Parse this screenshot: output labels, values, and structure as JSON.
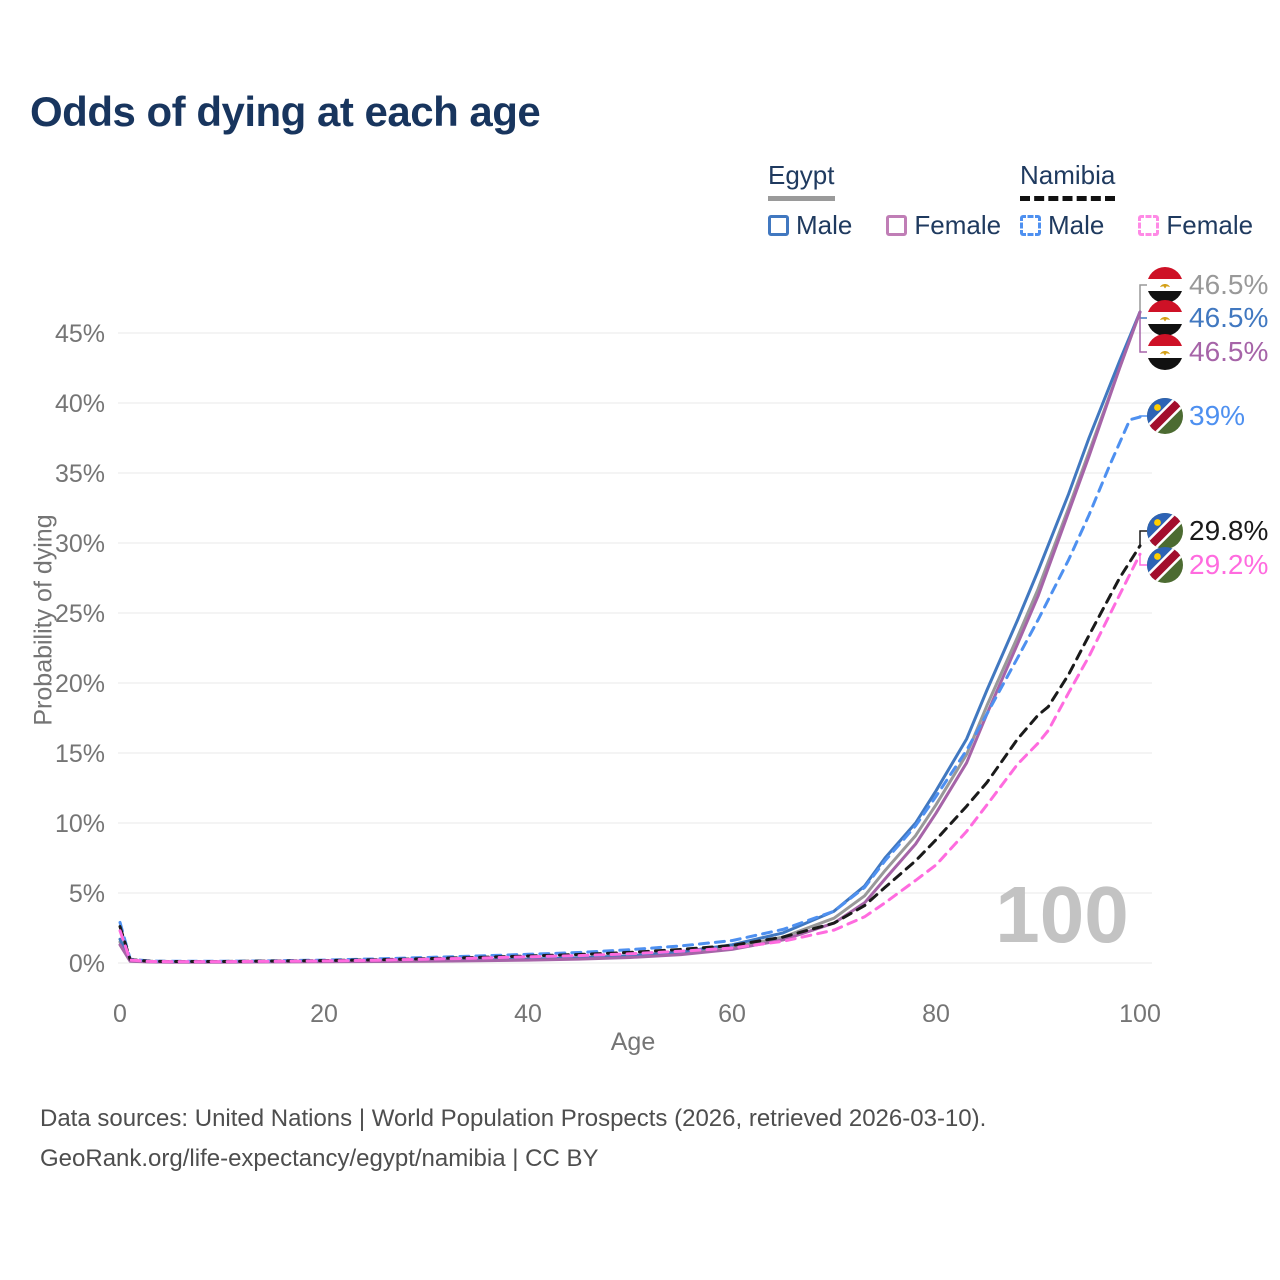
{
  "title": "Odds of dying at each age",
  "legend": {
    "groups": [
      {
        "label": "Egypt",
        "line_style": "solid",
        "items": [
          {
            "label": "Male",
            "color": "#4178C0"
          },
          {
            "label": "Female",
            "color": "#C07EB6"
          }
        ]
      },
      {
        "label": "Namibia",
        "line_style": "dashed",
        "items": [
          {
            "label": "Male",
            "color": "#4E90F0"
          },
          {
            "label": "Female",
            "color": "#FF8AE6"
          }
        ]
      }
    ]
  },
  "chart_data": {
    "type": "line",
    "title": "Odds of dying at each age",
    "xlabel": "Age",
    "ylabel": "Probability of dying",
    "xlim": [
      0,
      100
    ],
    "ylim": [
      0,
      48
    ],
    "x_ticks": [
      0,
      20,
      40,
      60,
      80,
      100
    ],
    "y_ticks": [
      0,
      5,
      10,
      15,
      20,
      25,
      30,
      35,
      40,
      45
    ],
    "y_tick_suffix": "%",
    "grid": "horizontal",
    "legend_position": "top-right",
    "watermark": "100",
    "series": [
      {
        "name": "Egypt both sexes",
        "country": "Egypt",
        "style": "solid",
        "color": "#999999",
        "end_label": "46.5%",
        "points": [
          [
            0,
            1.5
          ],
          [
            1,
            0.14
          ],
          [
            3,
            0.08
          ],
          [
            5,
            0.07
          ],
          [
            10,
            0.07
          ],
          [
            15,
            0.09
          ],
          [
            20,
            0.11
          ],
          [
            25,
            0.13
          ],
          [
            30,
            0.16
          ],
          [
            35,
            0.19
          ],
          [
            40,
            0.24
          ],
          [
            45,
            0.32
          ],
          [
            50,
            0.45
          ],
          [
            55,
            0.7
          ],
          [
            60,
            1.1
          ],
          [
            65,
            1.85
          ],
          [
            70,
            3.2
          ],
          [
            73,
            4.8
          ],
          [
            75,
            6.6
          ],
          [
            78,
            9.1
          ],
          [
            80,
            11.3
          ],
          [
            83,
            14.9
          ],
          [
            85,
            18.4
          ],
          [
            88,
            23.3
          ],
          [
            90,
            26.7
          ],
          [
            93,
            32.5
          ],
          [
            95,
            36.5
          ],
          [
            98,
            42.5
          ],
          [
            100,
            46.5
          ]
        ]
      },
      {
        "name": "Egypt male",
        "country": "Egypt",
        "style": "solid",
        "color": "#4178C0",
        "end_label": "46.5%",
        "points": [
          [
            0,
            1.7
          ],
          [
            1,
            0.16
          ],
          [
            3,
            0.09
          ],
          [
            5,
            0.08
          ],
          [
            10,
            0.08
          ],
          [
            15,
            0.1
          ],
          [
            20,
            0.13
          ],
          [
            25,
            0.15
          ],
          [
            30,
            0.18
          ],
          [
            35,
            0.22
          ],
          [
            40,
            0.28
          ],
          [
            45,
            0.37
          ],
          [
            50,
            0.52
          ],
          [
            55,
            0.8
          ],
          [
            60,
            1.3
          ],
          [
            65,
            2.15
          ],
          [
            70,
            3.7
          ],
          [
            73,
            5.5
          ],
          [
            75,
            7.5
          ],
          [
            78,
            10.0
          ],
          [
            80,
            12.3
          ],
          [
            83,
            16.0
          ],
          [
            85,
            19.5
          ],
          [
            88,
            24.5
          ],
          [
            90,
            28.0
          ],
          [
            93,
            33.5
          ],
          [
            95,
            37.5
          ],
          [
            98,
            43.0
          ],
          [
            100,
            46.5
          ]
        ]
      },
      {
        "name": "Egypt female",
        "country": "Egypt",
        "style": "solid",
        "color": "#A664A8",
        "end_label": "46.5%",
        "points": [
          [
            0,
            1.3
          ],
          [
            1,
            0.12
          ],
          [
            3,
            0.07
          ],
          [
            5,
            0.06
          ],
          [
            10,
            0.06
          ],
          [
            15,
            0.08
          ],
          [
            20,
            0.09
          ],
          [
            25,
            0.11
          ],
          [
            30,
            0.13
          ],
          [
            35,
            0.16
          ],
          [
            40,
            0.21
          ],
          [
            45,
            0.28
          ],
          [
            50,
            0.39
          ],
          [
            55,
            0.6
          ],
          [
            60,
            0.97
          ],
          [
            65,
            1.65
          ],
          [
            70,
            2.85
          ],
          [
            73,
            4.3
          ],
          [
            75,
            6.0
          ],
          [
            78,
            8.5
          ],
          [
            80,
            10.7
          ],
          [
            83,
            14.3
          ],
          [
            85,
            17.8
          ],
          [
            88,
            22.8
          ],
          [
            90,
            26.2
          ],
          [
            93,
            32.2
          ],
          [
            95,
            36.2
          ],
          [
            98,
            42.5
          ],
          [
            100,
            46.5
          ]
        ]
      },
      {
        "name": "Namibia male",
        "country": "Namibia",
        "style": "dashed",
        "color": "#4E90F0",
        "end_label": "39%",
        "points": [
          [
            0,
            2.9
          ],
          [
            1,
            0.27
          ],
          [
            3,
            0.14
          ],
          [
            5,
            0.12
          ],
          [
            10,
            0.12
          ],
          [
            15,
            0.16
          ],
          [
            20,
            0.21
          ],
          [
            25,
            0.29
          ],
          [
            30,
            0.39
          ],
          [
            35,
            0.5
          ],
          [
            40,
            0.62
          ],
          [
            45,
            0.75
          ],
          [
            50,
            0.95
          ],
          [
            55,
            1.22
          ],
          [
            60,
            1.6
          ],
          [
            65,
            2.4
          ],
          [
            70,
            3.7
          ],
          [
            73,
            5.4
          ],
          [
            75,
            7.3
          ],
          [
            78,
            9.8
          ],
          [
            80,
            11.9
          ],
          [
            83,
            15.2
          ],
          [
            85,
            17.8
          ],
          [
            88,
            21.8
          ],
          [
            90,
            24.5
          ],
          [
            93,
            28.8
          ],
          [
            95,
            32.0
          ],
          [
            97,
            35.5
          ],
          [
            99,
            38.8
          ],
          [
            100,
            39.0
          ]
        ]
      },
      {
        "name": "Namibia both sexes",
        "country": "Namibia",
        "style": "dashed",
        "color": "#1A1A1A",
        "end_label": "29.8%",
        "points": [
          [
            0,
            2.6
          ],
          [
            1,
            0.24
          ],
          [
            3,
            0.12
          ],
          [
            5,
            0.11
          ],
          [
            10,
            0.11
          ],
          [
            15,
            0.14
          ],
          [
            20,
            0.17
          ],
          [
            25,
            0.23
          ],
          [
            30,
            0.31
          ],
          [
            35,
            0.4
          ],
          [
            40,
            0.5
          ],
          [
            45,
            0.61
          ],
          [
            50,
            0.76
          ],
          [
            55,
            0.97
          ],
          [
            60,
            1.25
          ],
          [
            65,
            1.85
          ],
          [
            70,
            2.85
          ],
          [
            73,
            4.1
          ],
          [
            75,
            5.4
          ],
          [
            78,
            7.3
          ],
          [
            80,
            8.8
          ],
          [
            83,
            11.2
          ],
          [
            85,
            12.9
          ],
          [
            88,
            16.0
          ],
          [
            90,
            17.7
          ],
          [
            91,
            18.3
          ],
          [
            93,
            20.6
          ],
          [
            95,
            23.4
          ],
          [
            98,
            27.5
          ],
          [
            100,
            29.8
          ]
        ]
      },
      {
        "name": "Namibia female",
        "country": "Namibia",
        "style": "dashed",
        "color": "#FF6BDF",
        "end_label": "29.2%",
        "points": [
          [
            0,
            2.3
          ],
          [
            1,
            0.21
          ],
          [
            3,
            0.11
          ],
          [
            5,
            0.1
          ],
          [
            10,
            0.1
          ],
          [
            15,
            0.12
          ],
          [
            20,
            0.15
          ],
          [
            25,
            0.2
          ],
          [
            30,
            0.27
          ],
          [
            35,
            0.35
          ],
          [
            40,
            0.44
          ],
          [
            45,
            0.53
          ],
          [
            50,
            0.66
          ],
          [
            55,
            0.84
          ],
          [
            60,
            1.07
          ],
          [
            65,
            1.55
          ],
          [
            70,
            2.35
          ],
          [
            73,
            3.3
          ],
          [
            75,
            4.3
          ],
          [
            78,
            5.9
          ],
          [
            80,
            7.0
          ],
          [
            83,
            9.4
          ],
          [
            85,
            11.3
          ],
          [
            88,
            14.2
          ],
          [
            90,
            15.7
          ],
          [
            91,
            16.6
          ],
          [
            93,
            19.3
          ],
          [
            95,
            21.9
          ],
          [
            98,
            26.3
          ],
          [
            100,
            29.2
          ]
        ]
      }
    ]
  },
  "footer": {
    "line1": "Data sources: United Nations | World Population Prospects (2026, retrieved 2026-03-10).",
    "line2": "GeoRank.org/life-expectancy/egypt/namibia | CC BY"
  }
}
